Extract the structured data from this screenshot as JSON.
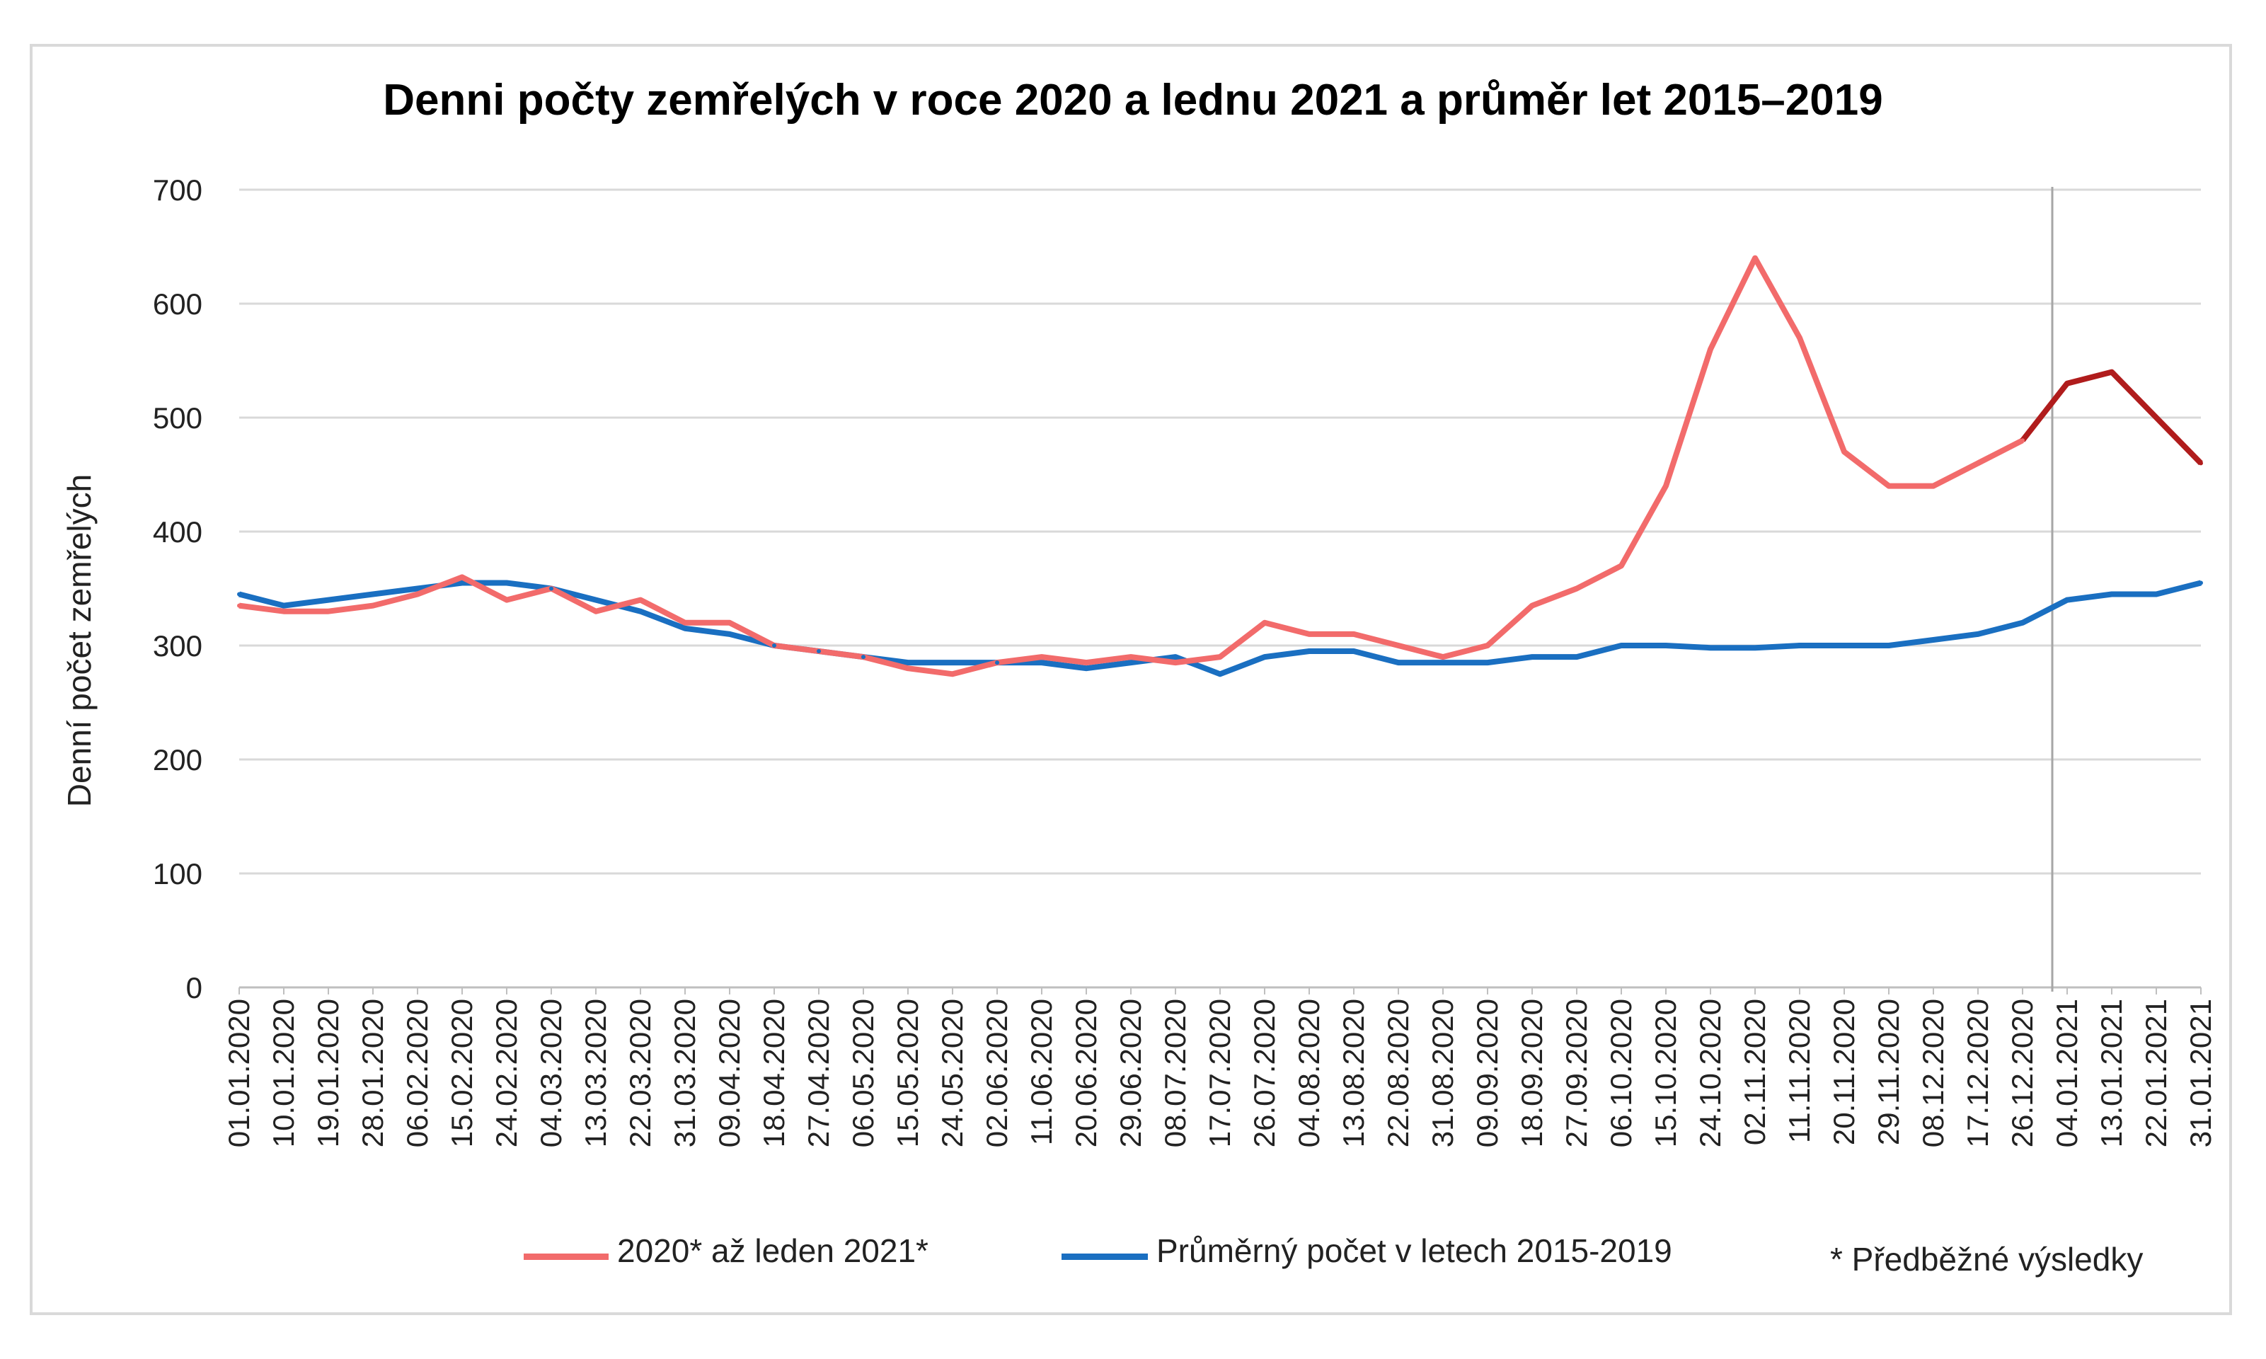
{
  "chart_data": {
    "type": "line",
    "title": "Denni počty zemřelých v roce 2020 a lednu 2021 a průměr let 2015–2019",
    "ylabel": "Denní počet zemřelých",
    "xlabel": "",
    "ylim": [
      0,
      700
    ],
    "yticks": [
      0,
      100,
      200,
      300,
      400,
      500,
      600,
      700
    ],
    "grid": true,
    "legend_position": "bottom",
    "x_start": "01.01.2020",
    "x_end": "31.01.2021",
    "x_tick_labels": [
      "01.01.2020",
      "10.01.2020",
      "19.01.2020",
      "28.01.2020",
      "06.02.2020",
      "15.02.2020",
      "24.02.2020",
      "04.03.2020",
      "13.03.2020",
      "22.03.2020",
      "31.03.2020",
      "09.04.2020",
      "18.04.2020",
      "27.04.2020",
      "06.05.2020",
      "15.05.2020",
      "24.05.2020",
      "02.06.2020",
      "11.06.2020",
      "20.06.2020",
      "29.06.2020",
      "08.07.2020",
      "17.07.2020",
      "26.07.2020",
      "04.08.2020",
      "13.08.2020",
      "22.08.2020",
      "31.08.2020",
      "09.09.2020",
      "18.09.2020",
      "27.09.2020",
      "06.10.2020",
      "15.10.2020",
      "24.10.2020",
      "02.11.2020",
      "11.11.2020",
      "20.11.2020",
      "29.11.2020",
      "08.12.2020",
      "17.12.2020",
      "26.12.2020",
      "04.01.2021",
      "13.01.2021",
      "22.01.2021",
      "31.01.2021"
    ],
    "divider_date": "01.01.2021",
    "series": [
      {
        "name": "2020* až leden 2021*",
        "color": "#f26b6b",
        "color_2021": "#b01c1c",
        "x": [
          "01.01.2020",
          "10.01.2020",
          "19.01.2020",
          "28.01.2020",
          "06.02.2020",
          "15.02.2020",
          "24.02.2020",
          "04.03.2020",
          "13.03.2020",
          "22.03.2020",
          "31.03.2020",
          "09.04.2020",
          "18.04.2020",
          "27.04.2020",
          "06.05.2020",
          "15.05.2020",
          "24.05.2020",
          "02.06.2020",
          "11.06.2020",
          "20.06.2020",
          "29.06.2020",
          "08.07.2020",
          "17.07.2020",
          "26.07.2020",
          "04.08.2020",
          "13.08.2020",
          "22.08.2020",
          "31.08.2020",
          "09.09.2020",
          "18.09.2020",
          "27.09.2020",
          "06.10.2020",
          "15.10.2020",
          "24.10.2020",
          "02.11.2020",
          "11.11.2020",
          "20.11.2020",
          "29.11.2020",
          "08.12.2020",
          "17.12.2020",
          "26.12.2020",
          "04.01.2021",
          "13.01.2021",
          "22.01.2021",
          "31.01.2021"
        ],
        "values": [
          335,
          330,
          330,
          335,
          345,
          360,
          340,
          350,
          330,
          340,
          320,
          320,
          300,
          295,
          290,
          280,
          275,
          285,
          290,
          285,
          290,
          285,
          290,
          320,
          310,
          310,
          300,
          290,
          300,
          335,
          350,
          370,
          440,
          560,
          640,
          570,
          470,
          440,
          440,
          460,
          480,
          530,
          540,
          500,
          460
        ]
      },
      {
        "name": "Průměrný počet v letech 2015-2019",
        "color": "#1a6fc1",
        "x": [
          "01.01.2020",
          "10.01.2020",
          "19.01.2020",
          "28.01.2020",
          "06.02.2020",
          "15.02.2020",
          "24.02.2020",
          "04.03.2020",
          "13.03.2020",
          "22.03.2020",
          "31.03.2020",
          "09.04.2020",
          "18.04.2020",
          "27.04.2020",
          "06.05.2020",
          "15.05.2020",
          "24.05.2020",
          "02.06.2020",
          "11.06.2020",
          "20.06.2020",
          "29.06.2020",
          "08.07.2020",
          "17.07.2020",
          "26.07.2020",
          "04.08.2020",
          "13.08.2020",
          "22.08.2020",
          "31.08.2020",
          "09.09.2020",
          "18.09.2020",
          "27.09.2020",
          "06.10.2020",
          "15.10.2020",
          "24.10.2020",
          "02.11.2020",
          "11.11.2020",
          "20.11.2020",
          "29.11.2020",
          "08.12.2020",
          "17.12.2020",
          "26.12.2020",
          "04.01.2021",
          "13.01.2021",
          "22.01.2021",
          "31.01.2021"
        ],
        "values": [
          345,
          335,
          340,
          345,
          350,
          355,
          355,
          350,
          340,
          330,
          315,
          310,
          300,
          295,
          290,
          285,
          285,
          285,
          285,
          280,
          285,
          290,
          275,
          290,
          295,
          295,
          285,
          285,
          285,
          290,
          290,
          300,
          300,
          298,
          298,
          300,
          300,
          300,
          305,
          310,
          320,
          340,
          345,
          345,
          355
        ]
      }
    ],
    "footnote": "* Předběžné výsledky"
  }
}
